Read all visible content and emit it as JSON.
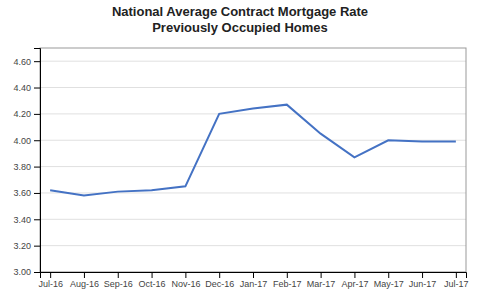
{
  "chart_data": {
    "type": "line",
    "title": "National Average Contract Mortgage Rate\nPreviously Occupied Homes",
    "categories": [
      "Jul-16",
      "Aug-16",
      "Sep-16",
      "Oct-16",
      "Nov-16",
      "Dec-16",
      "Jan-17",
      "Feb-17",
      "Mar-17",
      "Apr-17",
      "May-17",
      "Jun-17",
      "Jul-17"
    ],
    "values": [
      3.62,
      3.58,
      3.61,
      3.62,
      3.65,
      4.2,
      4.24,
      4.27,
      4.05,
      3.87,
      4.0,
      3.99,
      3.99
    ],
    "color": "#4472C4",
    "ylim": [
      3.0,
      4.7
    ],
    "yticks": [
      {
        "value": 3.0,
        "label": "3.00"
      },
      {
        "value": 3.2,
        "label": "3.20"
      },
      {
        "value": 3.4,
        "label": "3.40"
      },
      {
        "value": 3.6,
        "label": "3.60"
      },
      {
        "value": 3.8,
        "label": "3.80"
      },
      {
        "value": 4.0,
        "label": "4.00"
      },
      {
        "value": 4.2,
        "label": "4.20"
      },
      {
        "value": 4.4,
        "label": "4.40"
      },
      {
        "value": 4.6,
        "label": "4.60"
      }
    ],
    "grid": true
  }
}
